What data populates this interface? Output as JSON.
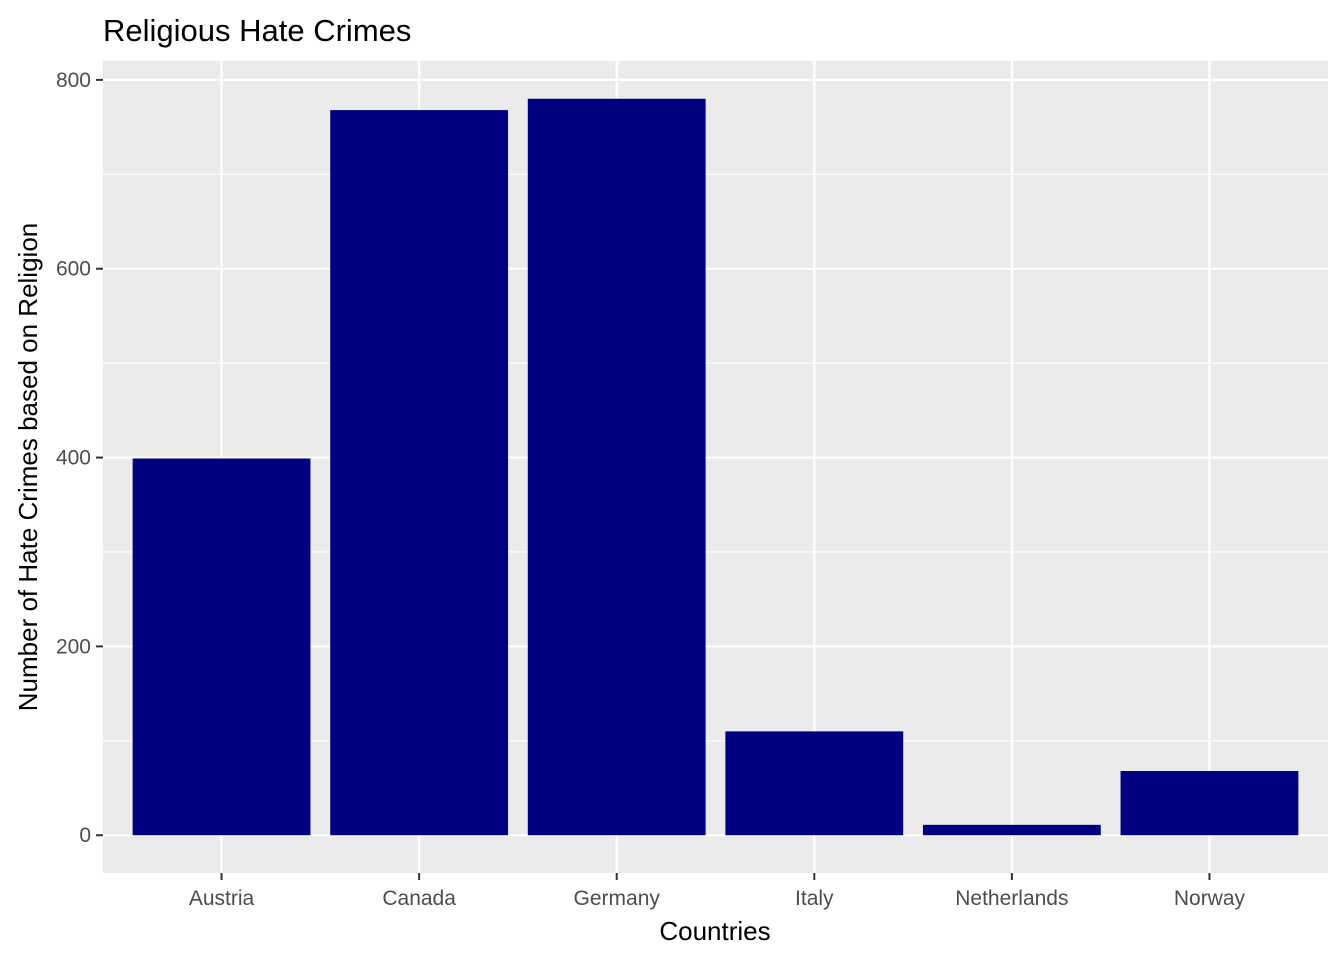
{
  "chart_data": {
    "type": "bar",
    "title": "Religious Hate Crimes",
    "xlabel": "Countries",
    "ylabel": "Number of Hate Crimes based on Religion",
    "categories": [
      "Austria",
      "Canada",
      "Germany",
      "Italy",
      "Netherlands",
      "Norway"
    ],
    "values": [
      399,
      768,
      780,
      110,
      11,
      68
    ],
    "ylim": [
      -40,
      820
    ],
    "yticks": [
      0,
      200,
      400,
      600,
      800
    ],
    "grid": true,
    "legend": "none",
    "colors": {
      "bar": "#000080",
      "panel": "#EBEBEB",
      "grid": "#FFFFFF",
      "tick_text": "#4D4D4D",
      "tick_mark": "#333333"
    }
  }
}
